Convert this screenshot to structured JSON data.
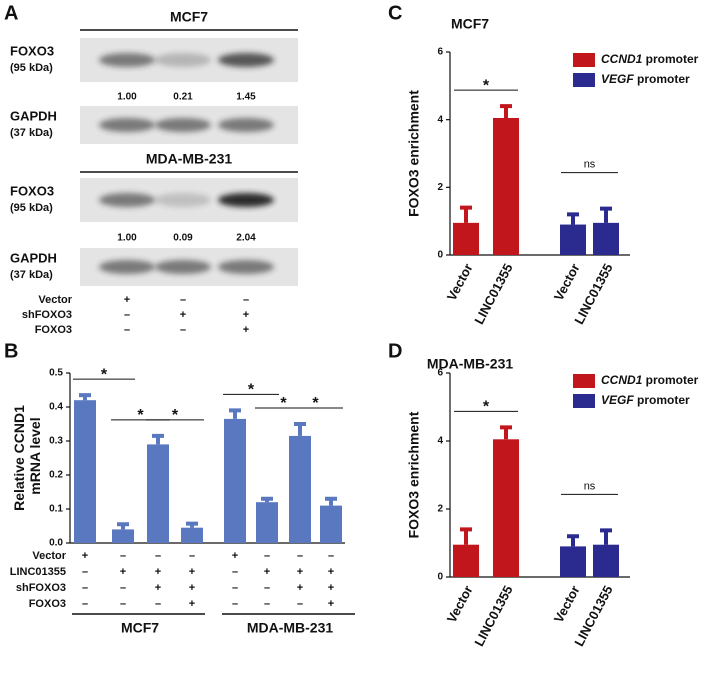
{
  "panel_letters": [
    "A",
    "B",
    "C",
    "D"
  ],
  "blots": {
    "panels": [
      {
        "title": "MCF7",
        "rows": [
          {
            "label": "FOXO3",
            "sublabel": "(95 kDa)",
            "values": [
              1.0,
              0.21,
              1.45
            ],
            "value_labels": [
              "1.00",
              "0.21",
              "1.45"
            ]
          },
          {
            "label": "GAPDH",
            "sublabel": "(37 kDa)"
          }
        ]
      },
      {
        "title": "MDA-MB-231",
        "rows": [
          {
            "label": "FOXO3",
            "sublabel": "(95 kDa)",
            "values": [
              1.0,
              0.09,
              2.04
            ],
            "value_labels": [
              "1.00",
              "0.09",
              "2.04"
            ]
          },
          {
            "label": "GAPDH",
            "sublabel": "(37 kDa)"
          }
        ]
      }
    ],
    "conditions": [
      {
        "label": "Vector",
        "marks": [
          "+",
          "–",
          "–"
        ]
      },
      {
        "label": "shFOXO3",
        "marks": [
          "–",
          "+",
          "+"
        ]
      },
      {
        "label": "FOXO3",
        "marks": [
          "–",
          "–",
          "+"
        ]
      }
    ]
  },
  "chart_data": [
    {
      "type": "bar",
      "ylabel": "Relative CCND1 mRNA level",
      "values": [
        0.42,
        0.04,
        0.29,
        0.045,
        0.365,
        0.12,
        0.315,
        0.11
      ],
      "errors": [
        0.015,
        0.015,
        0.025,
        0.012,
        0.025,
        0.01,
        0.035,
        0.02
      ],
      "color": "#5a78c0",
      "ylim": [
        0,
        0.5
      ],
      "yticks": [
        {
          "value": 0,
          "label": "0.0"
        },
        0.1,
        0.2,
        0.3,
        0.4,
        0.5
      ],
      "annotations": [
        {
          "text": "*",
          "from": 0,
          "to": 1
        },
        {
          "text": "*",
          "from": 1,
          "to": 2
        },
        {
          "text": "*",
          "from": 2,
          "to": 3
        },
        {
          "text": "*",
          "from": 4,
          "to": 5
        },
        {
          "text": "*",
          "from": 5,
          "to": 6
        },
        {
          "text": "*",
          "from": 6,
          "to": 7
        }
      ],
      "conditions": [
        {
          "label": "Vector",
          "marks": [
            "+",
            "–",
            "–",
            "–",
            "+",
            "–",
            "–",
            "–"
          ]
        },
        {
          "label": "LINC01355",
          "marks": [
            "–",
            "+",
            "+",
            "+",
            "–",
            "+",
            "+",
            "+"
          ]
        },
        {
          "label": "shFOXO3",
          "marks": [
            "–",
            "–",
            "+",
            "+",
            "–",
            "–",
            "+",
            "+"
          ]
        },
        {
          "label": "FOXO3",
          "marks": [
            "–",
            "–",
            "–",
            "+",
            "–",
            "–",
            "–",
            "+"
          ]
        }
      ],
      "groups": [
        "MCF7",
        "MDA-MB-231"
      ]
    },
    {
      "type": "bar",
      "title": "MCF7",
      "ylabel": "FOXO3 enrichment",
      "categories": [
        "Vector",
        "LINC01355",
        "Vector",
        "LINC01355"
      ],
      "series": [
        {
          "name": "CCND1 promoter",
          "color": "#c1161c",
          "values": [
            0.95,
            4.05,
            null,
            null
          ],
          "errors": [
            0.45,
            0.35,
            null,
            null
          ]
        },
        {
          "name": "VEGF promoter",
          "color": "#2b2a8e",
          "values": [
            null,
            null,
            0.9,
            0.95
          ],
          "errors": [
            null,
            null,
            0.3,
            0.42
          ]
        }
      ],
      "ylim": [
        0,
        6
      ],
      "yticks": [
        0,
        2,
        4,
        6
      ],
      "annotations": [
        {
          "text": "*",
          "from": 0,
          "to": 1
        },
        {
          "text": "ns",
          "from": 2,
          "to": 3
        }
      ]
    },
    {
      "type": "bar",
      "title": "MDA-MB-231",
      "ylabel": "FOXO3 enrichment",
      "categories": [
        "Vector",
        "LINC01355",
        "Vector",
        "LINC01355"
      ],
      "series": [
        {
          "name": "CCND1 promoter",
          "color": "#c1161c",
          "values": [
            0.95,
            4.05,
            null,
            null
          ],
          "errors": [
            0.45,
            0.35,
            null,
            null
          ]
        },
        {
          "name": "VEGF promoter",
          "color": "#2b2a8e",
          "values": [
            null,
            null,
            0.9,
            0.95
          ],
          "errors": [
            null,
            null,
            0.3,
            0.42
          ]
        }
      ],
      "ylim": [
        0,
        6
      ],
      "yticks": [
        0,
        2,
        4,
        6
      ],
      "annotations": [
        {
          "text": "*",
          "from": 0,
          "to": 1
        },
        {
          "text": "ns",
          "from": 2,
          "to": 3
        }
      ]
    }
  ]
}
